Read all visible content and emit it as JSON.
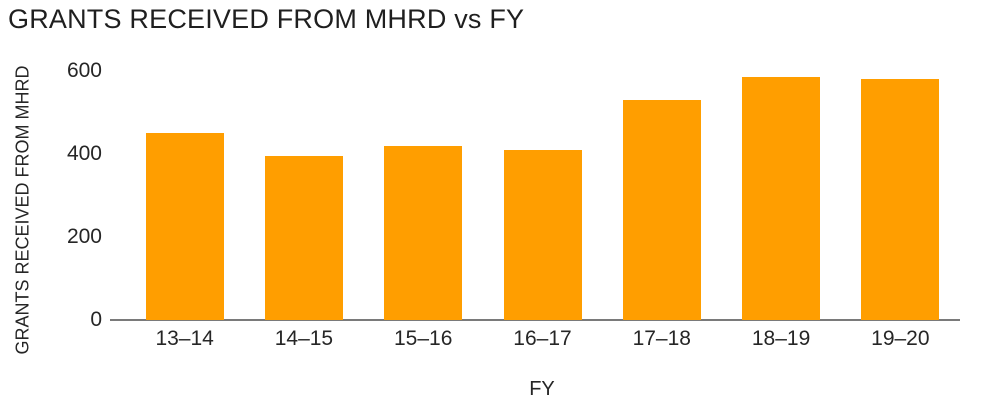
{
  "chart_data": {
    "type": "bar",
    "title": "GRANTS RECEIVED FROM MHRD vs FY",
    "xlabel": "FY",
    "ylabel": "GRANTS RECEIVED FROM MHRD",
    "categories": [
      "13–14",
      "14–15",
      "15–16",
      "16–17",
      "17–18",
      "18–19",
      "19–20"
    ],
    "values": [
      450,
      395,
      420,
      410,
      530,
      585,
      580
    ],
    "yticks": [
      0,
      200,
      400,
      600
    ],
    "ylim": [
      0,
      600
    ],
    "grid": false,
    "legend": "none",
    "bar_color": "#ff9e00",
    "axis_line_color": "#7a7a7a",
    "text_color": "#262626"
  }
}
